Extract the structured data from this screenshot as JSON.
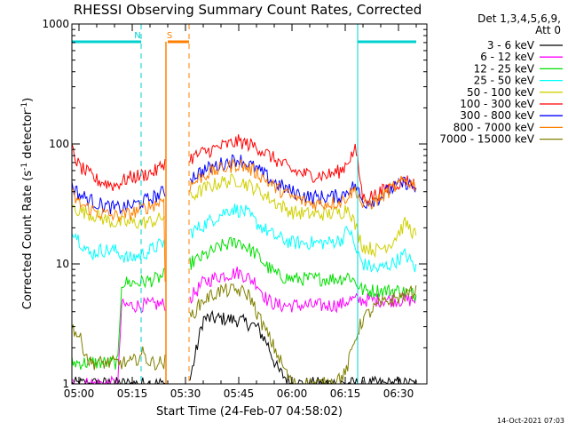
{
  "chart_data": {
    "type": "line",
    "title": "RHESSI Observing Summary Count Rates, Corrected",
    "xlabel": "Start Time (24-Feb-07 04:58:02)",
    "ylabel_main": "Corrected Count Rate (s",
    "ylabel_sup1": "-1",
    "ylabel_mid": " detector",
    "ylabel_sup2": "-1",
    "ylabel_end": ")",
    "yscale": "log",
    "ylim": [
      1,
      1000
    ],
    "xlim_minutes": [
      -2,
      98
    ],
    "x_ticks": [
      {
        "m": 0,
        "label": "05:00"
      },
      {
        "m": 15,
        "label": "05:15"
      },
      {
        "m": 30,
        "label": "05:30"
      },
      {
        "m": 45,
        "label": "05:45"
      },
      {
        "m": 60,
        "label": "06:00"
      },
      {
        "m": 75,
        "label": "06:15"
      },
      {
        "m": 90,
        "label": "06:30"
      }
    ],
    "y_ticks": [
      {
        "v": 1,
        "label": "1"
      },
      {
        "v": 10,
        "label": "10"
      },
      {
        "v": 100,
        "label": "100"
      },
      {
        "v": 1000,
        "label": "1000"
      }
    ],
    "legend_header": [
      "Det 1,3,4,5,6,9,",
      "Att 0"
    ],
    "legend_position": "top-right, outside plot",
    "timestamp": "14-Oct-2021 07:03",
    "flags": [
      {
        "label": "N",
        "color": "#00d0d0",
        "segments": [
          [
            -2,
            17.5
          ],
          [
            78.5,
            95
          ]
        ],
        "dashed_boundaries": [
          17.5,
          78.5
        ]
      },
      {
        "label": "S",
        "color": "#ff8000",
        "segments": [
          [
            25,
            31
          ]
        ],
        "dashed_boundaries": [
          31
        ]
      }
    ],
    "data_gap_minutes": [
      24.5,
      31
    ],
    "series": [
      {
        "name": "3 - 6 keV",
        "color": "#000000",
        "x": [
          -2,
          5,
          10,
          12,
          20,
          24,
          31,
          35,
          40,
          45,
          50,
          53,
          56,
          60,
          65,
          70,
          76,
          78,
          82,
          87,
          92,
          95
        ],
        "values": [
          1,
          1,
          1,
          1,
          1,
          1,
          1,
          3.5,
          3.5,
          3.4,
          3,
          2.2,
          1.3,
          1,
          1,
          1,
          1,
          1,
          1,
          1,
          1,
          1
        ]
      },
      {
        "name": "6 - 12 keV",
        "color": "#ff00ff",
        "x": [
          -2,
          5,
          11,
          12,
          17,
          22,
          24,
          31,
          35,
          40,
          45,
          50,
          53,
          56,
          60,
          65,
          70,
          74,
          76,
          78,
          82,
          87,
          92,
          95
        ],
        "values": [
          1,
          1,
          1,
          4.5,
          4.5,
          4.6,
          4.6,
          5,
          7,
          8,
          8.5,
          7,
          5,
          4.5,
          4.5,
          4.5,
          4.5,
          4.6,
          5,
          5,
          5,
          5,
          5,
          5
        ]
      },
      {
        "name": "12 - 25 keV",
        "color": "#00e000",
        "x": [
          -2,
          5,
          10,
          11,
          12,
          17,
          22,
          24,
          31,
          35,
          40,
          45,
          50,
          53,
          56,
          60,
          65,
          70,
          74,
          76,
          78,
          80,
          85,
          90,
          95
        ],
        "values": [
          1.5,
          1.5,
          1.5,
          1.5,
          7,
          7,
          7.5,
          8,
          10,
          11.5,
          14,
          15.5,
          12,
          9.5,
          8,
          7.5,
          7.5,
          7.5,
          7.6,
          8,
          7,
          6,
          6,
          6,
          5.5
        ]
      },
      {
        "name": "25 - 50 keV",
        "color": "#00ffff",
        "x": [
          -2,
          0,
          3,
          6,
          10,
          14,
          18,
          22,
          24,
          31,
          35,
          40,
          43,
          47,
          50,
          55,
          60,
          65,
          70,
          74,
          76,
          78,
          80,
          84,
          88,
          92,
          95
        ],
        "values": [
          20,
          16,
          12,
          13,
          13,
          11,
          12,
          14,
          15,
          18,
          21,
          26,
          29,
          27,
          22,
          17,
          15,
          15,
          15,
          16,
          20,
          13,
          10,
          9,
          10,
          12,
          9
        ]
      },
      {
        "name": "50 - 100 keV",
        "color": "#d0d000",
        "x": [
          -2,
          0,
          5,
          10,
          14,
          18,
          22,
          24,
          31,
          35,
          40,
          45,
          50,
          55,
          60,
          65,
          70,
          74,
          76,
          78,
          80,
          84,
          88,
          92,
          95
        ],
        "values": [
          30,
          28,
          25,
          22,
          22,
          22,
          23,
          25,
          35,
          42,
          48,
          50,
          42,
          33,
          27,
          26,
          26,
          27,
          30,
          20,
          14,
          13,
          15,
          22,
          17
        ]
      },
      {
        "name": "100 - 300 keV",
        "color": "#ff0000",
        "x": [
          -2,
          0,
          5,
          10,
          14,
          18,
          22,
          24,
          31,
          35,
          40,
          45,
          50,
          55,
          60,
          65,
          70,
          74,
          76,
          78,
          80,
          84,
          88,
          92,
          95
        ],
        "values": [
          90,
          65,
          50,
          45,
          52,
          55,
          60,
          70,
          75,
          85,
          95,
          105,
          95,
          75,
          60,
          55,
          55,
          60,
          75,
          90,
          35,
          38,
          45,
          50,
          45
        ]
      },
      {
        "name": "300 - 800 keV",
        "color": "#0000ff",
        "x": [
          -2,
          0,
          5,
          10,
          14,
          18,
          22,
          24,
          31,
          35,
          40,
          45,
          50,
          55,
          60,
          65,
          70,
          74,
          76,
          78,
          80,
          84,
          88,
          92,
          95
        ],
        "values": [
          45,
          38,
          32,
          29,
          30,
          33,
          37,
          40,
          52,
          60,
          68,
          75,
          62,
          48,
          40,
          36,
          36,
          37,
          42,
          45,
          32,
          35,
          42,
          48,
          42
        ]
      },
      {
        "name": "800 - 7000 keV",
        "color": "#ff8000",
        "x": [
          -2,
          0,
          5,
          10,
          14,
          18,
          22,
          24,
          24.6,
          31,
          35,
          40,
          45,
          50,
          55,
          60,
          65,
          70,
          74,
          76,
          78,
          80,
          84,
          88,
          92,
          95
        ],
        "values": [
          38,
          32,
          27,
          25,
          26,
          29,
          32,
          35,
          1,
          44,
          55,
          62,
          68,
          58,
          44,
          36,
          32,
          32,
          33,
          38,
          42,
          30,
          34,
          42,
          50,
          45
        ]
      },
      {
        "name": "7000 - 15000 keV",
        "color": "#808000",
        "x": [
          -2,
          0,
          3,
          6,
          9,
          12,
          15,
          18,
          20,
          22,
          24,
          31,
          35,
          40,
          45,
          48,
          50,
          52,
          55,
          57,
          60,
          65,
          70,
          75,
          78,
          80,
          84,
          88,
          92,
          95
        ],
        "values": [
          3,
          2.5,
          1.5,
          1.5,
          1.5,
          1.5,
          1.5,
          1.8,
          1.5,
          1.5,
          1.5,
          3.5,
          5,
          6,
          6,
          5.5,
          4,
          3,
          2,
          1.5,
          1,
          1,
          1,
          1.2,
          2.5,
          3.5,
          4.5,
          5,
          5.5,
          6
        ]
      }
    ]
  }
}
